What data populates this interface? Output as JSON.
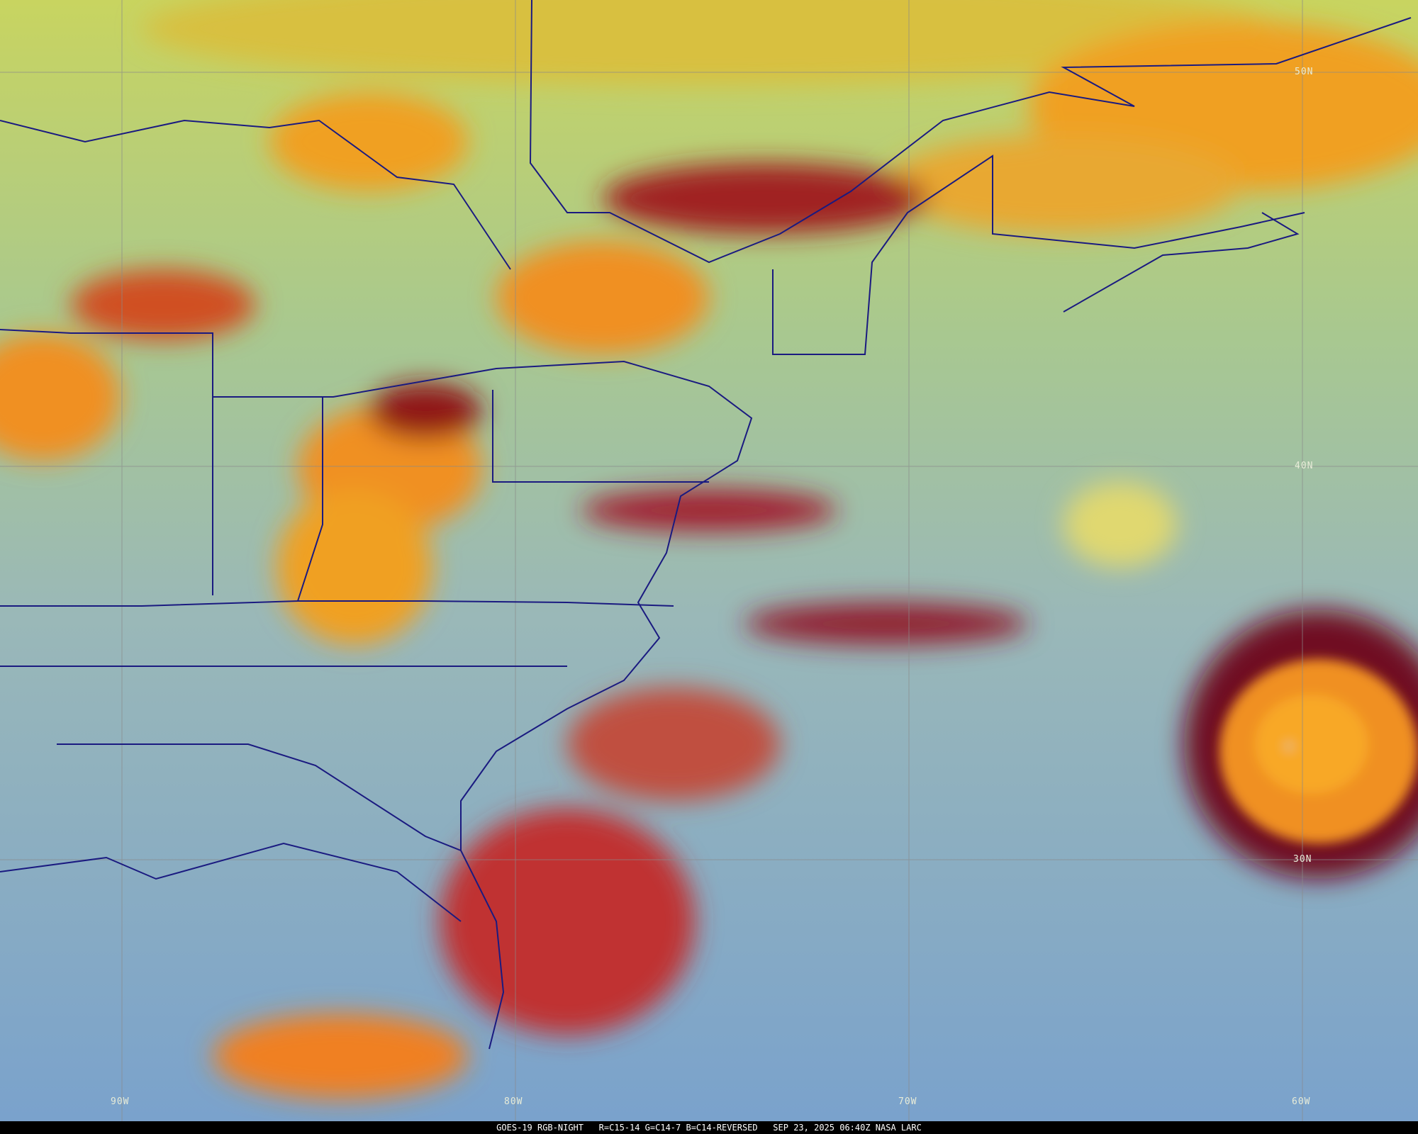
{
  "caption": "GOES-19 RGB-NIGHT   R=C15-14 G=C14-7 B=C14-REVERSED   SEP 23, 2025 06:40Z NASA LARC",
  "latitude_labels": [
    "50N",
    "40N",
    "30N"
  ],
  "longitude_labels": [
    "90W",
    "80W",
    "70W",
    "60W"
  ],
  "colors": {
    "ocean_clear": "#7fa6c8",
    "land_clear": "#9fb89a",
    "high_cloud": "#f0a020",
    "deep_cloud": "#8a1020",
    "low_cloud": "#b8d060",
    "borders": "#1a1a80",
    "gridlines": "#8a8a8a"
  }
}
